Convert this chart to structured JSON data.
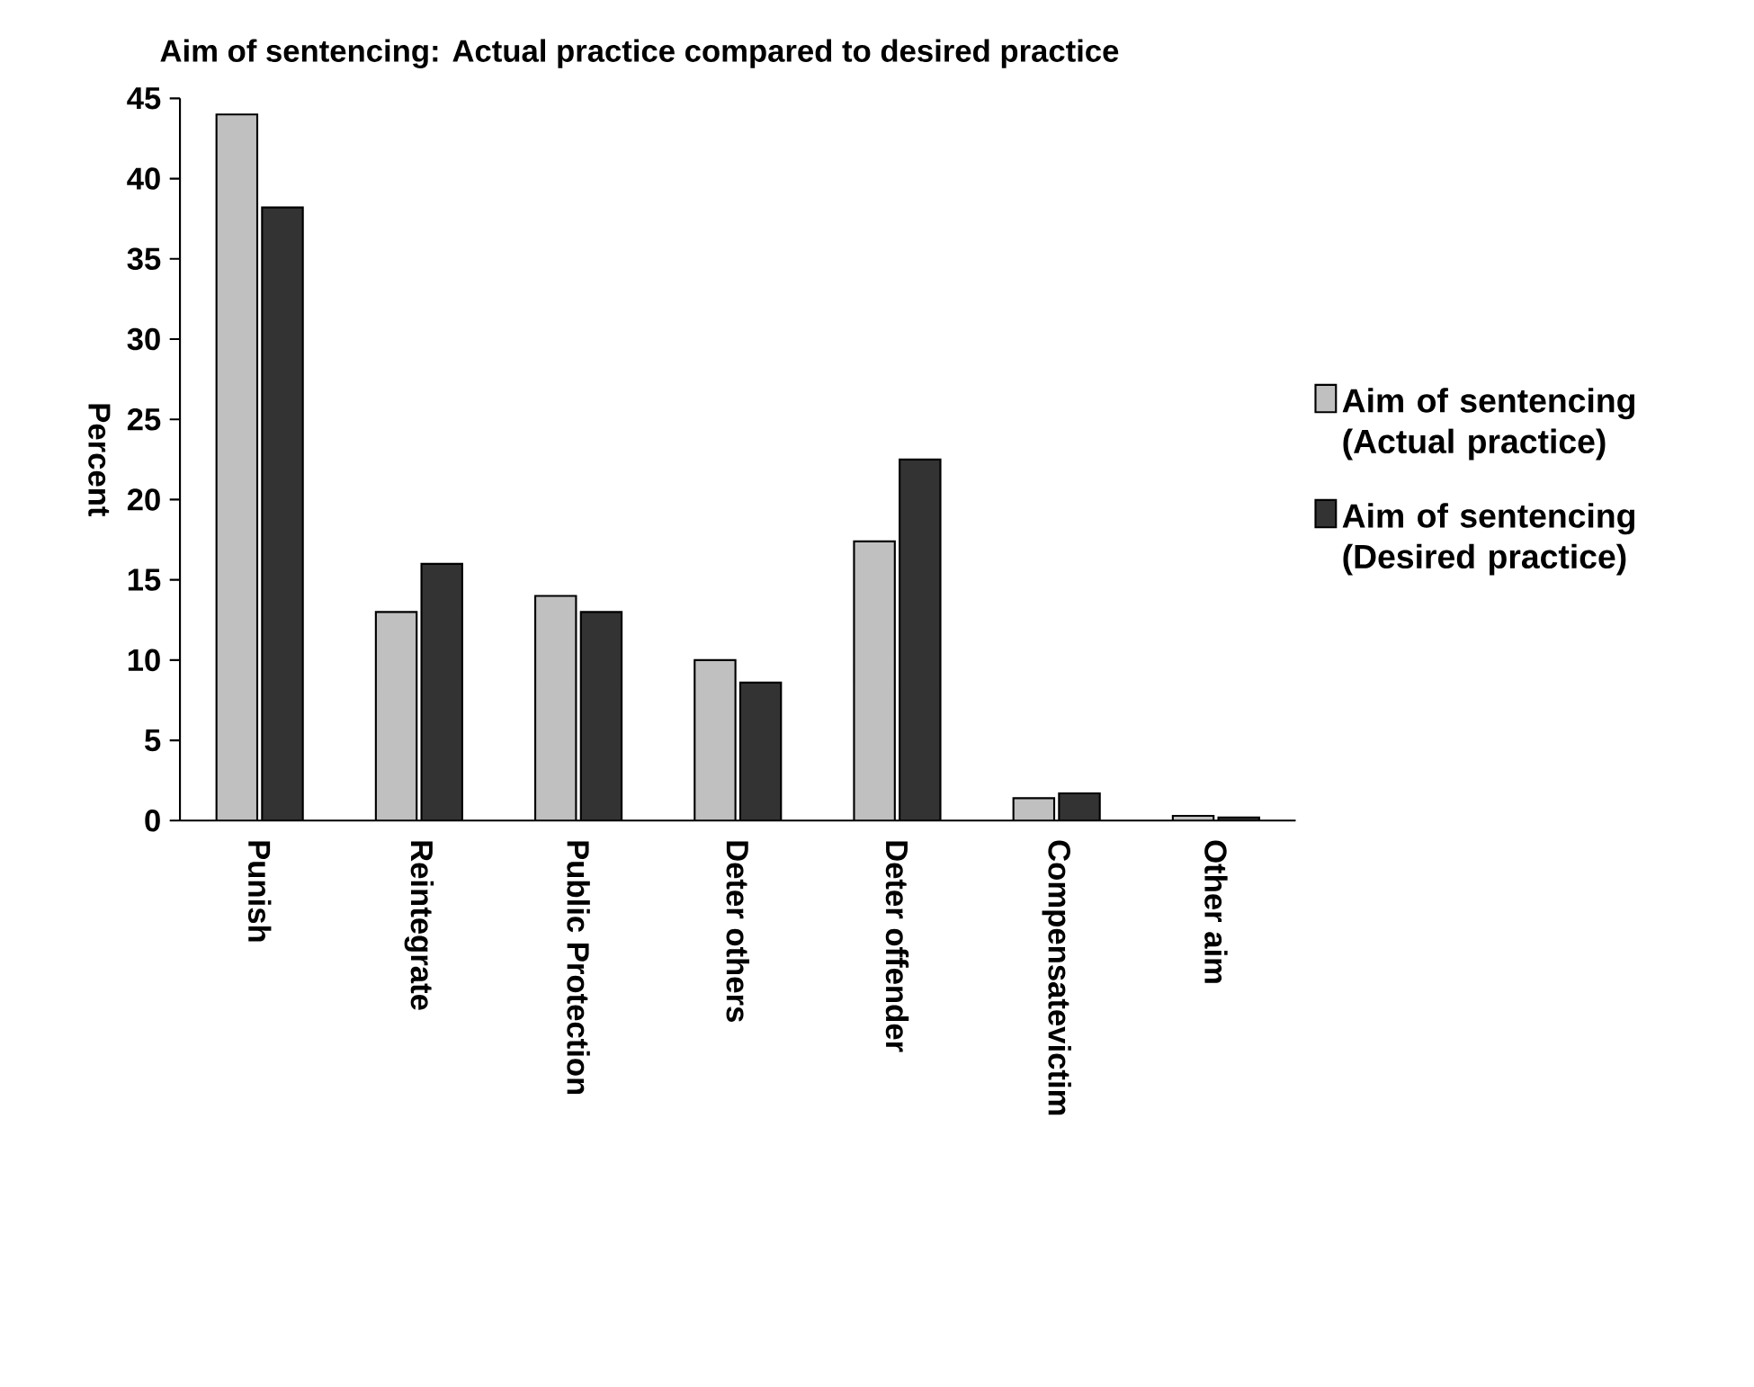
{
  "chart_data": {
    "type": "bar",
    "title": "Aim of sentencing: Actual practice compared to desired practice",
    "ylabel": "Percent",
    "categories": [
      "Punish",
      "Reintegrate",
      "Public Protection",
      "Deter others",
      "Deter offender",
      "Compensatevictim",
      "Other aim"
    ],
    "series": [
      {
        "name": "Aim of sentencing (Actual practice)",
        "color": "#c0c0c0",
        "values": [
          44.0,
          13.0,
          14.0,
          10.0,
          17.4,
          1.4,
          0.3
        ]
      },
      {
        "name": "Aim of sentencing (Desired practice)",
        "color": "#333333",
        "values": [
          38.2,
          16.0,
          13.0,
          8.6,
          22.5,
          1.7,
          0.2
        ]
      }
    ],
    "ylim": [
      0,
      45
    ],
    "yticks": [
      0,
      5,
      10,
      15,
      20,
      25,
      30,
      35,
      40,
      45
    ],
    "grid": false,
    "legend": "right"
  }
}
